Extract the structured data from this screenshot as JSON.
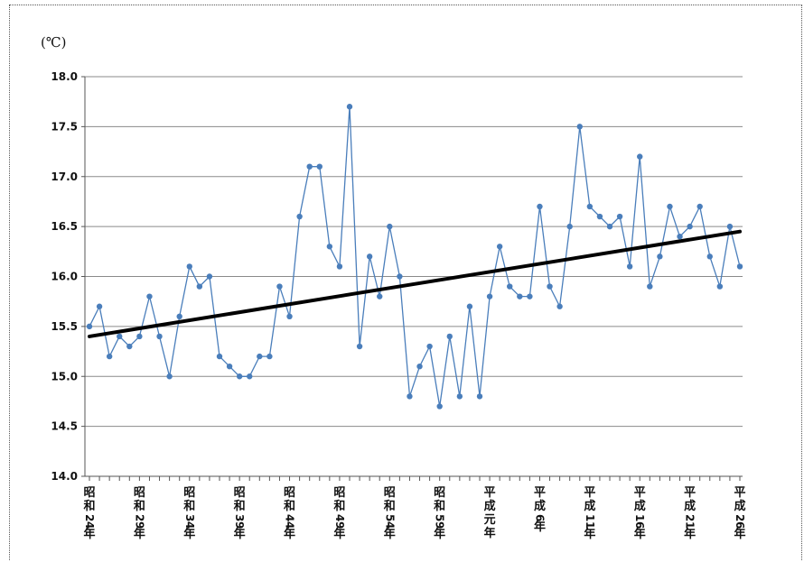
{
  "chart_data": {
    "type": "line",
    "title": "",
    "xlabel": "",
    "ylabel": "(℃)",
    "ylim": [
      14.0,
      18.0
    ],
    "yticks": [
      "14.0",
      "14.5",
      "15.0",
      "15.5",
      "16.0",
      "16.5",
      "17.0",
      "17.5",
      "18.0"
    ],
    "grid": true,
    "x_labels": [
      {
        "index": 0,
        "text": "昭和24年"
      },
      {
        "index": 5,
        "text": "昭和29年"
      },
      {
        "index": 10,
        "text": "昭和34年"
      },
      {
        "index": 15,
        "text": "昭和39年"
      },
      {
        "index": 20,
        "text": "昭和44年"
      },
      {
        "index": 25,
        "text": "昭和49年"
      },
      {
        "index": 30,
        "text": "昭和54年"
      },
      {
        "index": 35,
        "text": "昭和59年"
      },
      {
        "index": 40,
        "text": "平成元年"
      },
      {
        "index": 45,
        "text": "平成6年"
      },
      {
        "index": 50,
        "text": "平成11年"
      },
      {
        "index": 55,
        "text": "平成16年"
      },
      {
        "index": 60,
        "text": "平成21年"
      },
      {
        "index": 65,
        "text": "平成26年"
      }
    ],
    "series": [
      {
        "color": "#4a7ebb",
        "values": [
          15.5,
          15.7,
          15.2,
          15.4,
          15.3,
          15.4,
          15.8,
          15.4,
          15.0,
          15.6,
          16.1,
          15.9,
          16.0,
          15.2,
          15.1,
          15.0,
          15.0,
          15.2,
          15.2,
          15.9,
          15.6,
          16.6,
          17.1,
          17.1,
          16.3,
          16.1,
          17.7,
          15.3,
          16.2,
          15.8,
          16.5,
          16.0,
          14.8,
          15.1,
          15.3,
          14.7,
          15.4,
          14.8,
          15.7,
          14.8,
          15.8,
          16.3,
          15.9,
          15.8,
          15.8,
          16.7,
          15.9,
          15.7,
          16.5,
          17.5,
          16.7,
          16.6,
          16.5,
          16.6,
          16.1,
          17.2,
          15.9,
          16.2,
          16.7,
          16.4,
          16.5,
          16.7,
          16.2,
          15.9,
          16.5,
          16.1
        ]
      }
    ],
    "trend": {
      "color": "#000000",
      "start": 15.4,
      "end": 16.45
    }
  }
}
